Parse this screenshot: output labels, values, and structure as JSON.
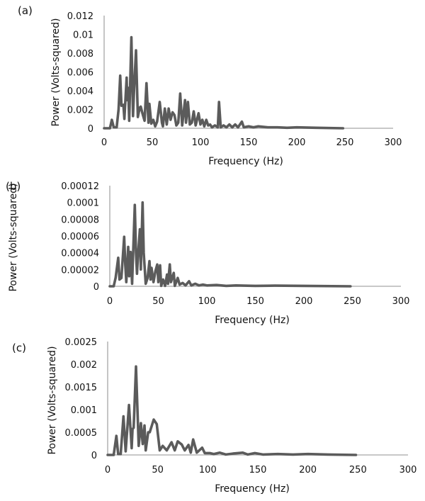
{
  "chart_data": [
    {
      "type": "line",
      "panel_label": "(a)",
      "xlabel": "Frequency (Hz)",
      "ylabel": "Power (Volts-squared)",
      "xlim": [
        0,
        300
      ],
      "ylim": [
        0,
        0.012
      ],
      "xticks": [
        "0",
        "50",
        "100",
        "150",
        "200",
        "250",
        "300"
      ],
      "yticks": [
        "0",
        "0.002",
        "0.004",
        "0.006",
        "0.008",
        "0.01",
        "0.012"
      ],
      "color": "#5b5b5b",
      "points": [
        [
          0,
          0
        ],
        [
          6,
          0
        ],
        [
          8,
          0.0009
        ],
        [
          10,
          0.0001
        ],
        [
          13,
          0.0001
        ],
        [
          15,
          0.002
        ],
        [
          16.7,
          0.0056
        ],
        [
          18,
          0.0024
        ],
        [
          20,
          0.0025
        ],
        [
          21,
          0.001
        ],
        [
          23.4,
          0.0054
        ],
        [
          24,
          0.003
        ],
        [
          25,
          0.0043
        ],
        [
          26,
          0.0008
        ],
        [
          28.3,
          0.0097
        ],
        [
          30,
          0.0013
        ],
        [
          31,
          0.004
        ],
        [
          33.1,
          0.0083
        ],
        [
          35,
          0.0012
        ],
        [
          37,
          0.0022
        ],
        [
          38,
          0.0023
        ],
        [
          40,
          0.0015
        ],
        [
          42,
          0.0008
        ],
        [
          44,
          0.0048
        ],
        [
          46,
          0.0006
        ],
        [
          47,
          0.0026
        ],
        [
          49,
          0.0005
        ],
        [
          51,
          0.0009
        ],
        [
          53,
          0.0002
        ],
        [
          55,
          0.0007
        ],
        [
          57.7,
          0.0028
        ],
        [
          60,
          0.0006
        ],
        [
          61,
          0.0002
        ],
        [
          63,
          0.0021
        ],
        [
          65,
          0.0004
        ],
        [
          67,
          0.0021
        ],
        [
          69,
          0.0009
        ],
        [
          71,
          0.0017
        ],
        [
          73,
          0.0014
        ],
        [
          75,
          0.0003
        ],
        [
          77,
          0.0006
        ],
        [
          79,
          0.0037
        ],
        [
          81,
          0.0003
        ],
        [
          84,
          0.003
        ],
        [
          85,
          0.0006
        ],
        [
          87,
          0.0028
        ],
        [
          89,
          0.0004
        ],
        [
          91,
          0.0006
        ],
        [
          93,
          0.0018
        ],
        [
          95,
          0.0003
        ],
        [
          98,
          0.0016
        ],
        [
          100,
          0.0004
        ],
        [
          102,
          0.0009
        ],
        [
          104,
          0.0002
        ],
        [
          106,
          0.0009
        ],
        [
          108,
          0.0003
        ],
        [
          110,
          0.0004
        ],
        [
          112,
          0.0001
        ],
        [
          115,
          0.0003
        ],
        [
          118,
          0.0001
        ],
        [
          119.3,
          0.0028
        ],
        [
          121,
          0.0001
        ],
        [
          124,
          0.0003
        ],
        [
          127,
          0.0001
        ],
        [
          130,
          0.0004
        ],
        [
          133,
          0.0001
        ],
        [
          136,
          0.0004
        ],
        [
          139,
          0.0001
        ],
        [
          143,
          0.0007
        ],
        [
          145,
          0.0001
        ],
        [
          150,
          0.0002
        ],
        [
          155,
          0.0001
        ],
        [
          160,
          0.0002
        ],
        [
          170,
          0.0001
        ],
        [
          180,
          0.0001
        ],
        [
          190,
          5e-05
        ],
        [
          200,
          0.0001
        ],
        [
          220,
          5e-05
        ],
        [
          248,
          0
        ]
      ]
    },
    {
      "type": "line",
      "panel_label": "(b)",
      "xlabel": "Frequency (Hz)",
      "ylabel": "Power (Volts-squared)",
      "xlim": [
        0,
        300
      ],
      "ylim": [
        0,
        0.00012
      ],
      "xticks": [
        "0",
        "50",
        "100",
        "150",
        "200",
        "250",
        "300"
      ],
      "yticks": [
        "0",
        "0.00002",
        "0.00004",
        "0.00006",
        "0.00008",
        "0.0001",
        "0.00012"
      ],
      "color": "#5b5b5b",
      "points": [
        [
          0,
          0
        ],
        [
          4,
          0
        ],
        [
          6,
          1e-05
        ],
        [
          8.7,
          3.4e-05
        ],
        [
          10,
          8e-06
        ],
        [
          12,
          1e-05
        ],
        [
          14.8,
          5.9e-05
        ],
        [
          16,
          2.5e-05
        ],
        [
          17,
          5e-06
        ],
        [
          19,
          4.7e-05
        ],
        [
          20,
          1.2e-05
        ],
        [
          21.4,
          4.1e-05
        ],
        [
          23,
          3e-06
        ],
        [
          25.8,
          9.7e-05
        ],
        [
          27,
          4e-05
        ],
        [
          28,
          1.5e-05
        ],
        [
          29,
          3.5e-05
        ],
        [
          31,
          6.8e-05
        ],
        [
          32,
          2e-05
        ],
        [
          33.8,
          0.0001
        ],
        [
          35,
          4e-05
        ],
        [
          37,
          3e-06
        ],
        [
          39,
          1e-05
        ],
        [
          40.9,
          3e-05
        ],
        [
          42,
          8e-06
        ],
        [
          43,
          2.2e-05
        ],
        [
          45,
          5e-06
        ],
        [
          47,
          1.8e-05
        ],
        [
          48.9,
          2.6e-05
        ],
        [
          50,
          5e-06
        ],
        [
          51.8,
          2.5e-05
        ],
        [
          53,
          5e-07
        ],
        [
          55,
          8e-06
        ],
        [
          57,
          5e-07
        ],
        [
          59,
          1.4e-05
        ],
        [
          60,
          3e-06
        ],
        [
          61.8,
          2.6e-05
        ],
        [
          63,
          5e-06
        ],
        [
          65.9,
          1.6e-05
        ],
        [
          67,
          5e-07
        ],
        [
          70,
          1e-05
        ],
        [
          72,
          2e-06
        ],
        [
          75,
          4e-06
        ],
        [
          78,
          1e-06
        ],
        [
          81.7,
          6e-06
        ],
        [
          84,
          1e-06
        ],
        [
          88,
          3e-06
        ],
        [
          92,
          1e-06
        ],
        [
          96,
          2e-06
        ],
        [
          100,
          1e-06
        ],
        [
          110,
          1.5e-06
        ],
        [
          120,
          5e-07
        ],
        [
          130,
          1e-06
        ],
        [
          150,
          5e-07
        ],
        [
          170,
          8e-07
        ],
        [
          200,
          5e-07
        ],
        [
          248,
          0
        ]
      ]
    },
    {
      "type": "line",
      "panel_label": "(c)",
      "xlabel": "Frequency (Hz)",
      "ylabel": "Power (Volts-squared)",
      "xlim": [
        0,
        300
      ],
      "ylim": [
        0,
        0.0025
      ],
      "xticks": [
        "0",
        "50",
        "100",
        "150",
        "200",
        "250",
        "300"
      ],
      "yticks": [
        "0",
        "0.0005",
        "0.001",
        "0.0015",
        "0.002",
        "0.0025"
      ],
      "color": "#5b5b5b",
      "points": [
        [
          0,
          0
        ],
        [
          6,
          0
        ],
        [
          8.7,
          0.00042
        ],
        [
          10.5,
          2e-05
        ],
        [
          13,
          2e-05
        ],
        [
          15.8,
          0.00085
        ],
        [
          18,
          8e-05
        ],
        [
          21.3,
          0.0011
        ],
        [
          24,
          0.00015
        ],
        [
          24.8,
          0.00057
        ],
        [
          26,
          0.0006
        ],
        [
          28.3,
          0.00195
        ],
        [
          31,
          0.0002
        ],
        [
          33.2,
          0.0007
        ],
        [
          35,
          0.00024
        ],
        [
          36.8,
          0.00065
        ],
        [
          38,
          0.0001
        ],
        [
          40.5,
          0.0005
        ],
        [
          42,
          0.0005
        ],
        [
          46,
          0.00078
        ],
        [
          49,
          0.00068
        ],
        [
          52,
          0.0001
        ],
        [
          55,
          0.0002
        ],
        [
          59,
          0.0001
        ],
        [
          63.8,
          0.00028
        ],
        [
          67,
          0.0001
        ],
        [
          70,
          0.0003
        ],
        [
          74,
          0.00023
        ],
        [
          77,
          0.0001
        ],
        [
          80.7,
          0.00022
        ],
        [
          83,
          5e-05
        ],
        [
          85.4,
          0.00034
        ],
        [
          89,
          5e-05
        ],
        [
          94.4,
          0.00016
        ],
        [
          97,
          4e-05
        ],
        [
          102,
          4e-05
        ],
        [
          106,
          2e-05
        ],
        [
          112,
          5e-05
        ],
        [
          118,
          1e-05
        ],
        [
          125,
          3e-05
        ],
        [
          135,
          5e-05
        ],
        [
          140,
          1e-05
        ],
        [
          147,
          4e-05
        ],
        [
          155,
          1e-05
        ],
        [
          170,
          2e-05
        ],
        [
          185,
          1e-05
        ],
        [
          200,
          2e-05
        ],
        [
          220,
          1e-05
        ],
        [
          248,
          0
        ]
      ]
    }
  ]
}
